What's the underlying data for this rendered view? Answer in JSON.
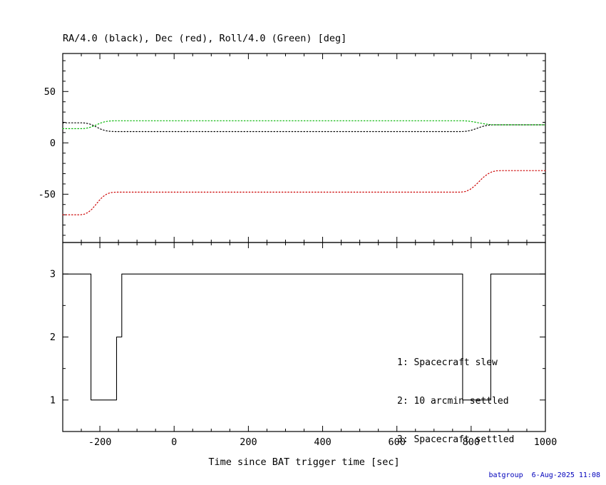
{
  "title": "RA/4.0 (black), Dec (red), Roll/4.0 (Green) [deg]",
  "xlabel": "Time since BAT trigger time [sec]",
  "footer": "batgroup  6-Aug-2025 11:08",
  "colors": {
    "frame": "#000000",
    "ra_black": "#000000",
    "dec_red": "#cc0000",
    "roll_green": "#00b400",
    "footer_blue": "#0000bb"
  },
  "chart_data": [
    {
      "type": "line",
      "panel": "attitude",
      "title": "RA/4.0 (black), Dec (red), Roll/4.0 (Green) [deg]",
      "xlim": [
        -300,
        1000
      ],
      "ylim": [
        -97,
        87
      ],
      "xticks": [
        -200,
        0,
        200,
        400,
        600,
        800,
        1000
      ],
      "yticks": [
        -50,
        0,
        50
      ],
      "x_minor_step": 50,
      "y_minor_step": 10,
      "grid": false,
      "legend_position": "none",
      "line_style": "dotted",
      "show_x_labels": false,
      "series": [
        {
          "name": "RA/4.0 (black)",
          "color": "#000000",
          "points": [
            [
              -300,
              19.5
            ],
            [
              -248,
              19.5
            ],
            [
              -238,
              19.2
            ],
            [
              -228,
              18.4
            ],
            [
              -218,
              17.0
            ],
            [
              -208,
              15.2
            ],
            [
              -198,
              13.4
            ],
            [
              -188,
              12.2
            ],
            [
              -178,
              11.4
            ],
            [
              -168,
              11.1
            ],
            [
              -158,
              11.0
            ],
            [
              775,
              11.0
            ],
            [
              788,
              11.3
            ],
            [
              800,
              12.2
            ],
            [
              812,
              13.6
            ],
            [
              824,
              15.2
            ],
            [
              836,
              16.5
            ],
            [
              848,
              17.3
            ],
            [
              860,
              17.6
            ],
            [
              1000,
              17.6
            ]
          ]
        },
        {
          "name": "Dec (red)",
          "color": "#cc0000",
          "points": [
            [
              -300,
              -70.0
            ],
            [
              -252,
              -70.0
            ],
            [
              -242,
              -69.4
            ],
            [
              -232,
              -67.8
            ],
            [
              -222,
              -64.8
            ],
            [
              -212,
              -60.6
            ],
            [
              -202,
              -56.2
            ],
            [
              -192,
              -52.4
            ],
            [
              -182,
              -49.9
            ],
            [
              -172,
              -48.5
            ],
            [
              -162,
              -48.1
            ],
            [
              -155,
              -48.0
            ],
            [
              772,
              -48.0
            ],
            [
              784,
              -47.4
            ],
            [
              796,
              -45.6
            ],
            [
              808,
              -42.4
            ],
            [
              820,
              -38.2
            ],
            [
              832,
              -33.8
            ],
            [
              844,
              -30.4
            ],
            [
              856,
              -28.2
            ],
            [
              868,
              -27.2
            ],
            [
              880,
              -27.0
            ],
            [
              1000,
              -27.0
            ]
          ]
        },
        {
          "name": "Roll/4.0 (Green)",
          "color": "#00b400",
          "points": [
            [
              -300,
              13.8
            ],
            [
              -248,
              13.8
            ],
            [
              -238,
              14.1
            ],
            [
              -228,
              14.9
            ],
            [
              -218,
              16.2
            ],
            [
              -208,
              17.8
            ],
            [
              -198,
              19.3
            ],
            [
              -188,
              20.4
            ],
            [
              -178,
              21.1
            ],
            [
              -168,
              21.4
            ],
            [
              -158,
              21.5
            ],
            [
              778,
              21.5
            ],
            [
              792,
              21.2
            ],
            [
              806,
              20.5
            ],
            [
              820,
              19.5
            ],
            [
              834,
              18.6
            ],
            [
              848,
              17.9
            ],
            [
              862,
              17.6
            ],
            [
              1000,
              17.6
            ]
          ]
        }
      ]
    },
    {
      "type": "line",
      "panel": "settled-flag",
      "xlim": [
        -300,
        1000
      ],
      "ylim": [
        0.5,
        3.5
      ],
      "xticks": [
        -200,
        0,
        200,
        400,
        600,
        800,
        1000
      ],
      "yticks": [
        1,
        2,
        3
      ],
      "x_minor_step": 50,
      "y_minor_step": 0.5,
      "grid": false,
      "line_style": "solid",
      "show_x_labels": true,
      "legend": [
        "1: Spacecraft slew",
        "2: 10 arcmin settled",
        "3: Spacecraft settled"
      ],
      "series": [
        {
          "name": "spacecraft-settled-state",
          "color": "#000000",
          "points": [
            [
              -300,
              3
            ],
            [
              -224,
              3
            ],
            [
              -224,
              1
            ],
            [
              -155,
              1
            ],
            [
              -155,
              2
            ],
            [
              -141,
              2
            ],
            [
              -141,
              3
            ],
            [
              777,
              3
            ],
            [
              777,
              1
            ],
            [
              853,
              1
            ],
            [
              853,
              3
            ],
            [
              1000,
              3
            ]
          ]
        }
      ]
    }
  ]
}
